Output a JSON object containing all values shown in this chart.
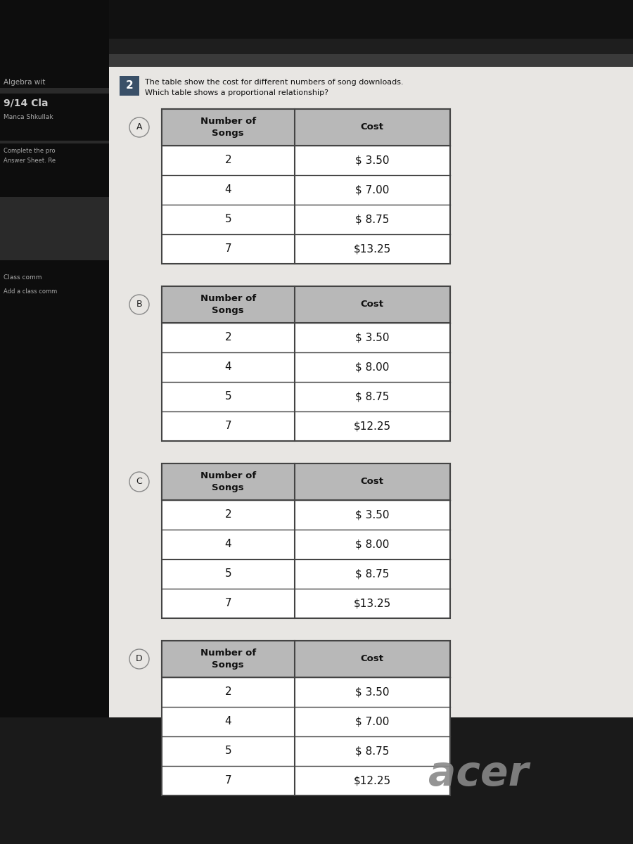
{
  "title_num": "2",
  "title_text": "The table show the cost for different numbers of song downloads.\nWhich table shows a proportional relationship?",
  "tables": [
    {
      "label": "A",
      "songs": [
        2,
        4,
        5,
        7
      ],
      "costs": [
        "$ 3.50",
        "$ 7.00",
        "$ 8.75",
        "$13.25"
      ]
    },
    {
      "label": "B",
      "songs": [
        2,
        4,
        5,
        7
      ],
      "costs": [
        "$ 3.50",
        "$ 8.00",
        "$ 8.75",
        "$12.25"
      ]
    },
    {
      "label": "C",
      "songs": [
        2,
        4,
        5,
        7
      ],
      "costs": [
        "$ 3.50",
        "$ 8.00",
        "$ 8.75",
        "$13.25"
      ]
    },
    {
      "label": "D",
      "songs": [
        2,
        4,
        5,
        7
      ],
      "costs": [
        "$ 3.50",
        "$ 7.00",
        "$ 8.75",
        "$12.25"
      ]
    }
  ],
  "bg_outer": "#1a1a1a",
  "bg_inner": "#e8e6e3",
  "table_bg_header": "#b8b8b8",
  "table_bg_row": "#ffffff",
  "table_border": "#444444",
  "header_col1": "Number of\nSongs",
  "header_col2": "Cost",
  "title_box_color": "#3a5068",
  "title_box_text_color": "#ffffff",
  "option_circle_color": "#e8e6e3",
  "option_circle_border": "#888888",
  "left_sidebar_color": "#111111",
  "top_bar_color": "#111111",
  "mid_bar_color": "#2a2a2a",
  "acer_text": "acer",
  "acer_color": "#888888",
  "sidebar_text1": "Algebra wit",
  "sidebar_text2": "9/14 Cla",
  "sidebar_text3": "Manca Shkullak",
  "sidebar_text4": "Complete the pro",
  "sidebar_text5": "Answer Sheet. Re",
  "sidebar_text6": "Class comm",
  "sidebar_text7": "Add a class comm"
}
